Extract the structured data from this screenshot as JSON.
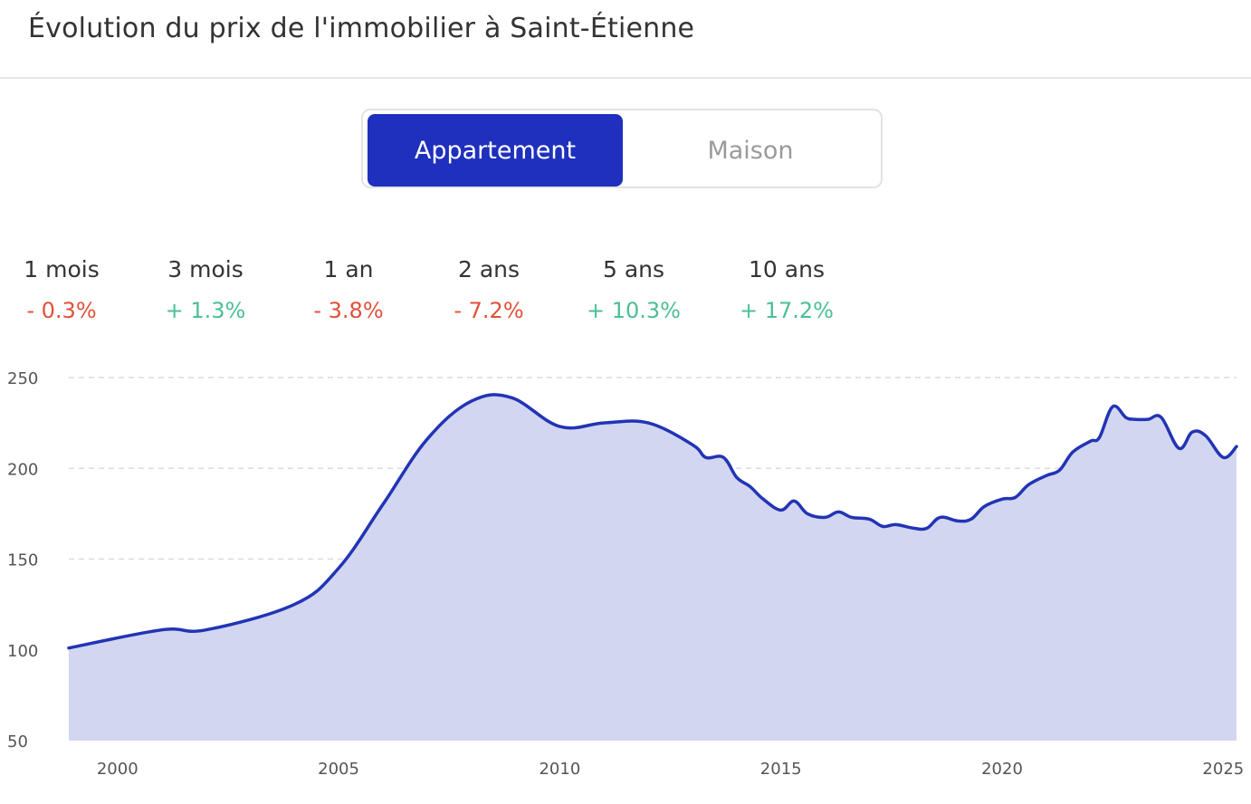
{
  "title": "Évolution du prix de l'immobilier à Saint-Étienne",
  "toggle": {
    "options": [
      "Appartement",
      "Maison"
    ],
    "selected": "Appartement"
  },
  "stats": [
    {
      "label": "1 mois",
      "value": "- 0.3%",
      "trend": "negative"
    },
    {
      "label": "3 mois",
      "value": "+ 1.3%",
      "trend": "positive"
    },
    {
      "label": "1 an",
      "value": "- 3.8%",
      "trend": "negative"
    },
    {
      "label": "2 ans",
      "value": "- 7.2%",
      "trend": "negative"
    },
    {
      "label": "5 ans",
      "value": "+ 10.3%",
      "trend": "positive"
    },
    {
      "label": "10 ans",
      "value": "+ 17.2%",
      "trend": "positive"
    }
  ],
  "colors": {
    "accent": "#1e30bd",
    "line": "#2234b5",
    "area": "#d3d6f1",
    "negative": "#e0513b",
    "positive": "#4dbf94",
    "grid": "#dcdcdc"
  },
  "chart_data": {
    "type": "area",
    "title": "",
    "xlabel": "",
    "ylabel": "",
    "xlim": [
      1998.9,
      2025.3
    ],
    "ylim": [
      50,
      250
    ],
    "yticks": [
      50,
      100,
      150,
      200,
      250
    ],
    "xticks": [
      2000,
      2005,
      2010,
      2015,
      2020,
      2025
    ],
    "grid": true,
    "series": [
      {
        "x": [
          1998.9,
          2001.0,
          2002.0,
          2004.0,
          2005.0,
          2006.0,
          2007.0,
          2008.0,
          2008.9,
          2010.0,
          2011.0,
          2012.0,
          2013.0,
          2013.3,
          2013.7,
          2014.0,
          2014.3,
          2014.6,
          2015.0,
          2015.3,
          2015.6,
          2016.0,
          2016.3,
          2016.6,
          2017.0,
          2017.3,
          2017.6,
          2018.0,
          2018.3,
          2018.6,
          2019.0,
          2019.3,
          2019.6,
          2020.0,
          2020.3,
          2020.6,
          2021.0,
          2021.3,
          2021.6,
          2022.0,
          2022.2,
          2022.5,
          2022.8,
          2023.0,
          2023.3,
          2023.6,
          2024.0,
          2024.3,
          2024.6,
          2025.0,
          2025.3
        ],
        "values": [
          101,
          111,
          111,
          125,
          145,
          180,
          216,
          237,
          239,
          223,
          225,
          225,
          213,
          206,
          206,
          195,
          190,
          183,
          177,
          182,
          175,
          173,
          176,
          173,
          172,
          168,
          169,
          167,
          167,
          173,
          171,
          172,
          179,
          183,
          184,
          191,
          196,
          199,
          209,
          215,
          217,
          234,
          228,
          227,
          227,
          228,
          211,
          220,
          218,
          206,
          212
        ]
      }
    ]
  }
}
